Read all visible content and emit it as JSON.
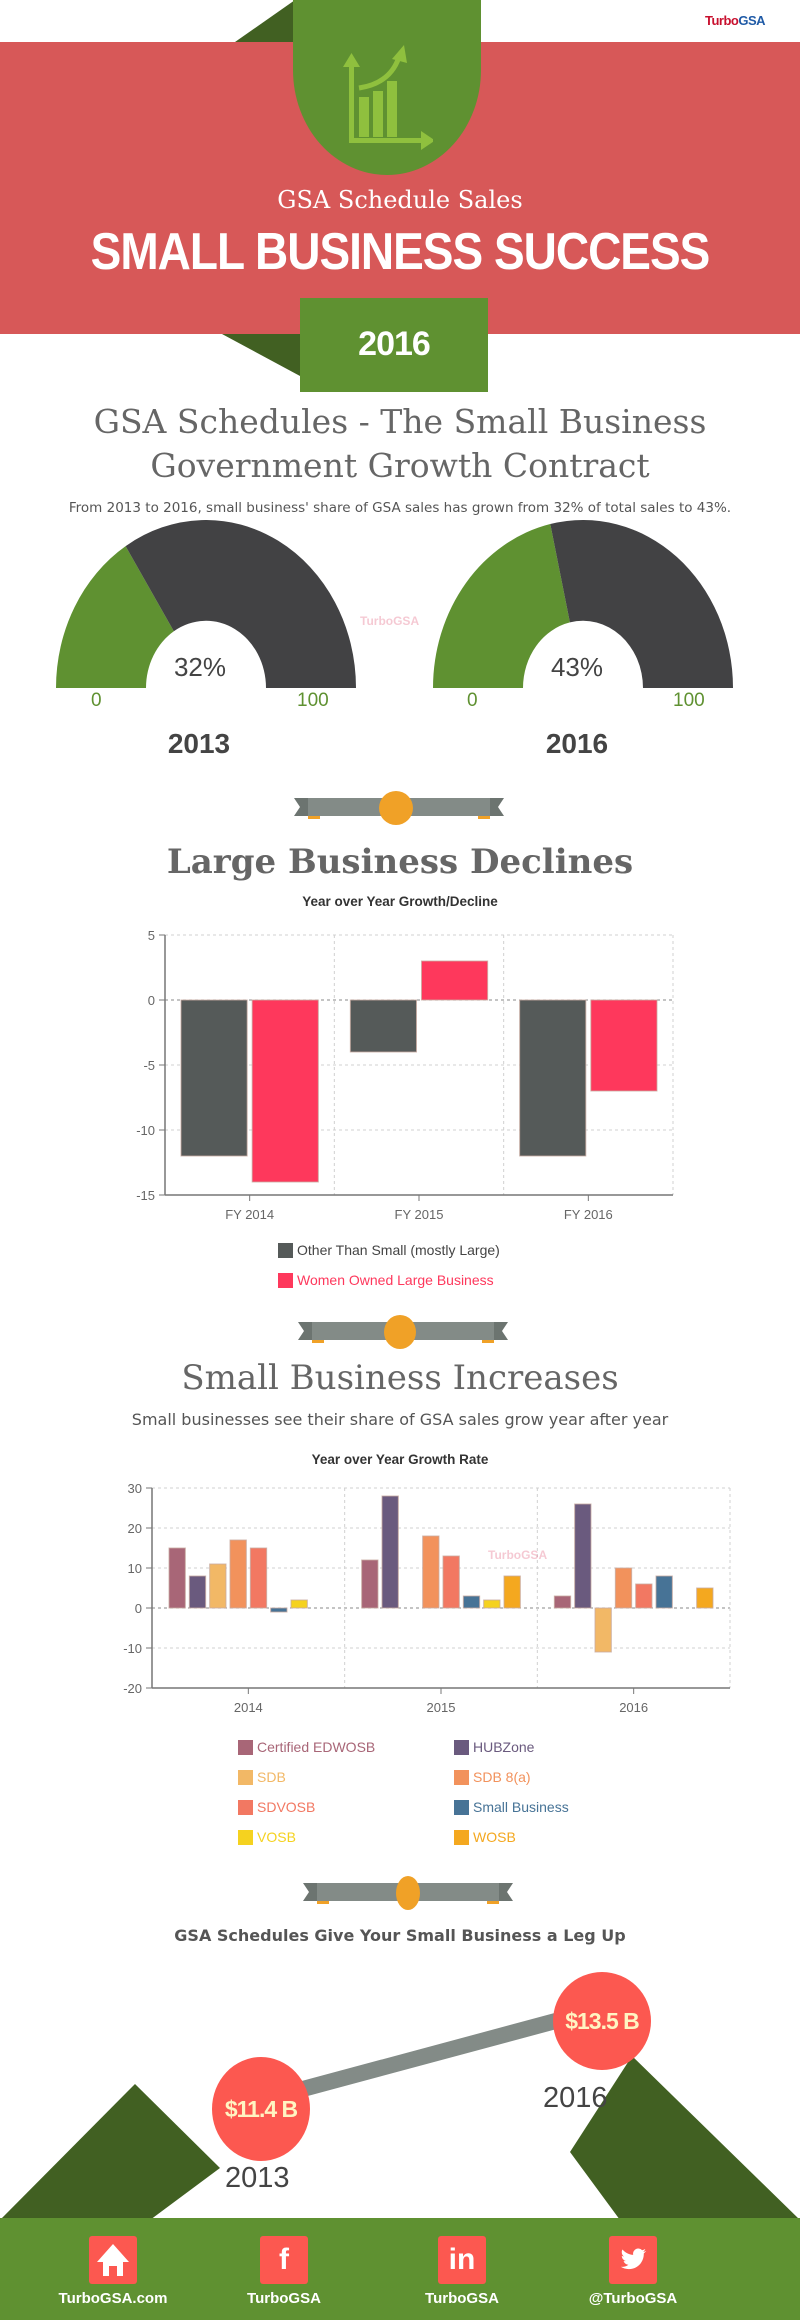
{
  "hero": {
    "logo_part1": "Turbo",
    "logo_part2": "GSA",
    "subtitle": "GSA Schedule Sales",
    "title": "SMALL BUSINESS SUCCESS",
    "year": "2016",
    "icon": "growth-chart-icon"
  },
  "section1": {
    "title_line1": "GSA Schedules - The Small Business",
    "title_line2": "Government Growth Contract",
    "text": "From 2013 to 2016, small business' share of GSA sales has grown from 32% of total sales to 43%.",
    "watermark": "TurboGSA",
    "gauges": [
      {
        "year": "2013",
        "value": 32,
        "label": "32%",
        "min": "0",
        "max": "100"
      },
      {
        "year": "2016",
        "value": 43,
        "label": "43%",
        "min": "0",
        "max": "100"
      }
    ]
  },
  "section2": {
    "title": "Large Business Declines"
  },
  "section3": {
    "title": "Small Business Increases",
    "text": "Small businesses see their share of GSA sales grow year after year",
    "watermark": "TurboGSA"
  },
  "section4": {
    "title": "GSA Schedules Give Your Small Business a Leg Up",
    "points": [
      {
        "year": "2013",
        "value": "$11.4 B"
      },
      {
        "year": "2016",
        "value": "$13.5 B"
      }
    ]
  },
  "footer": {
    "items": [
      {
        "icon": "home-icon",
        "glyph": "⌂",
        "label": "TurboGSA.com"
      },
      {
        "icon": "facebook-icon",
        "glyph": "f",
        "label": "TurboGSA"
      },
      {
        "icon": "linkedin-icon",
        "glyph": "in",
        "label": "TurboGSA"
      },
      {
        "icon": "twitter-icon",
        "glyph": "🐦",
        "label": "@TurboGSA"
      }
    ]
  },
  "colors": {
    "red": "#d75858",
    "green": "#5f9131",
    "dark_green": "#416022",
    "gauge_dark": "#424244",
    "coral": "#fc5850",
    "ribbon_gray": "#838b87",
    "ribbon_orange": "#f0a127"
  },
  "chart_data": [
    {
      "type": "gauge",
      "title": "2013",
      "value": 32,
      "range": [
        0,
        100
      ]
    },
    {
      "type": "gauge",
      "title": "2016",
      "value": 43,
      "range": [
        0,
        100
      ]
    },
    {
      "type": "bar",
      "title": "Year over Year Growth/Decline",
      "categories": [
        "FY 2014",
        "FY 2015",
        "FY 2016"
      ],
      "series": [
        {
          "name": "Other Than Small (mostly Large)",
          "color": "#555a59",
          "values": [
            -12,
            -4,
            -12
          ]
        },
        {
          "name": "Women Owned Large Business",
          "color": "#fe385c",
          "values": [
            -14,
            3,
            -7
          ]
        }
      ],
      "ylim": [
        -15,
        5
      ],
      "yticks": [
        5,
        0,
        -5,
        -10,
        -15
      ],
      "grid": true,
      "legend": "bottom",
      "xlabel": "",
      "ylabel": ""
    },
    {
      "type": "bar",
      "title": "Year over Year Growth Rate",
      "categories": [
        "2014",
        "2015",
        "2016"
      ],
      "series": [
        {
          "name": "Certified EDWOSB",
          "color": "#a86677",
          "values": [
            15,
            12,
            3
          ]
        },
        {
          "name": "HUBZone",
          "color": "#6a5a7e",
          "values": [
            8,
            28,
            26
          ]
        },
        {
          "name": "SDB",
          "color": "#f2b866",
          "values": [
            11,
            null,
            -11
          ]
        },
        {
          "name": "SDB 8(a)",
          "color": "#f2925c",
          "values": [
            17,
            18,
            10
          ]
        },
        {
          "name": "SDVOSB",
          "color": "#f27862",
          "values": [
            15,
            13,
            6
          ]
        },
        {
          "name": "Small Business",
          "color": "#477396",
          "values": [
            -1,
            3,
            8
          ]
        },
        {
          "name": "VOSB",
          "color": "#f5d21f",
          "values": [
            2,
            2,
            null
          ]
        },
        {
          "name": "WOSB",
          "color": "#f4a81f",
          "values": [
            null,
            8,
            5
          ]
        }
      ],
      "ylim": [
        -20,
        30
      ],
      "yticks": [
        30,
        20,
        10,
        0,
        -10,
        -20
      ],
      "grid": true,
      "legend": "bottom",
      "xlabel": "",
      "ylabel": ""
    }
  ]
}
